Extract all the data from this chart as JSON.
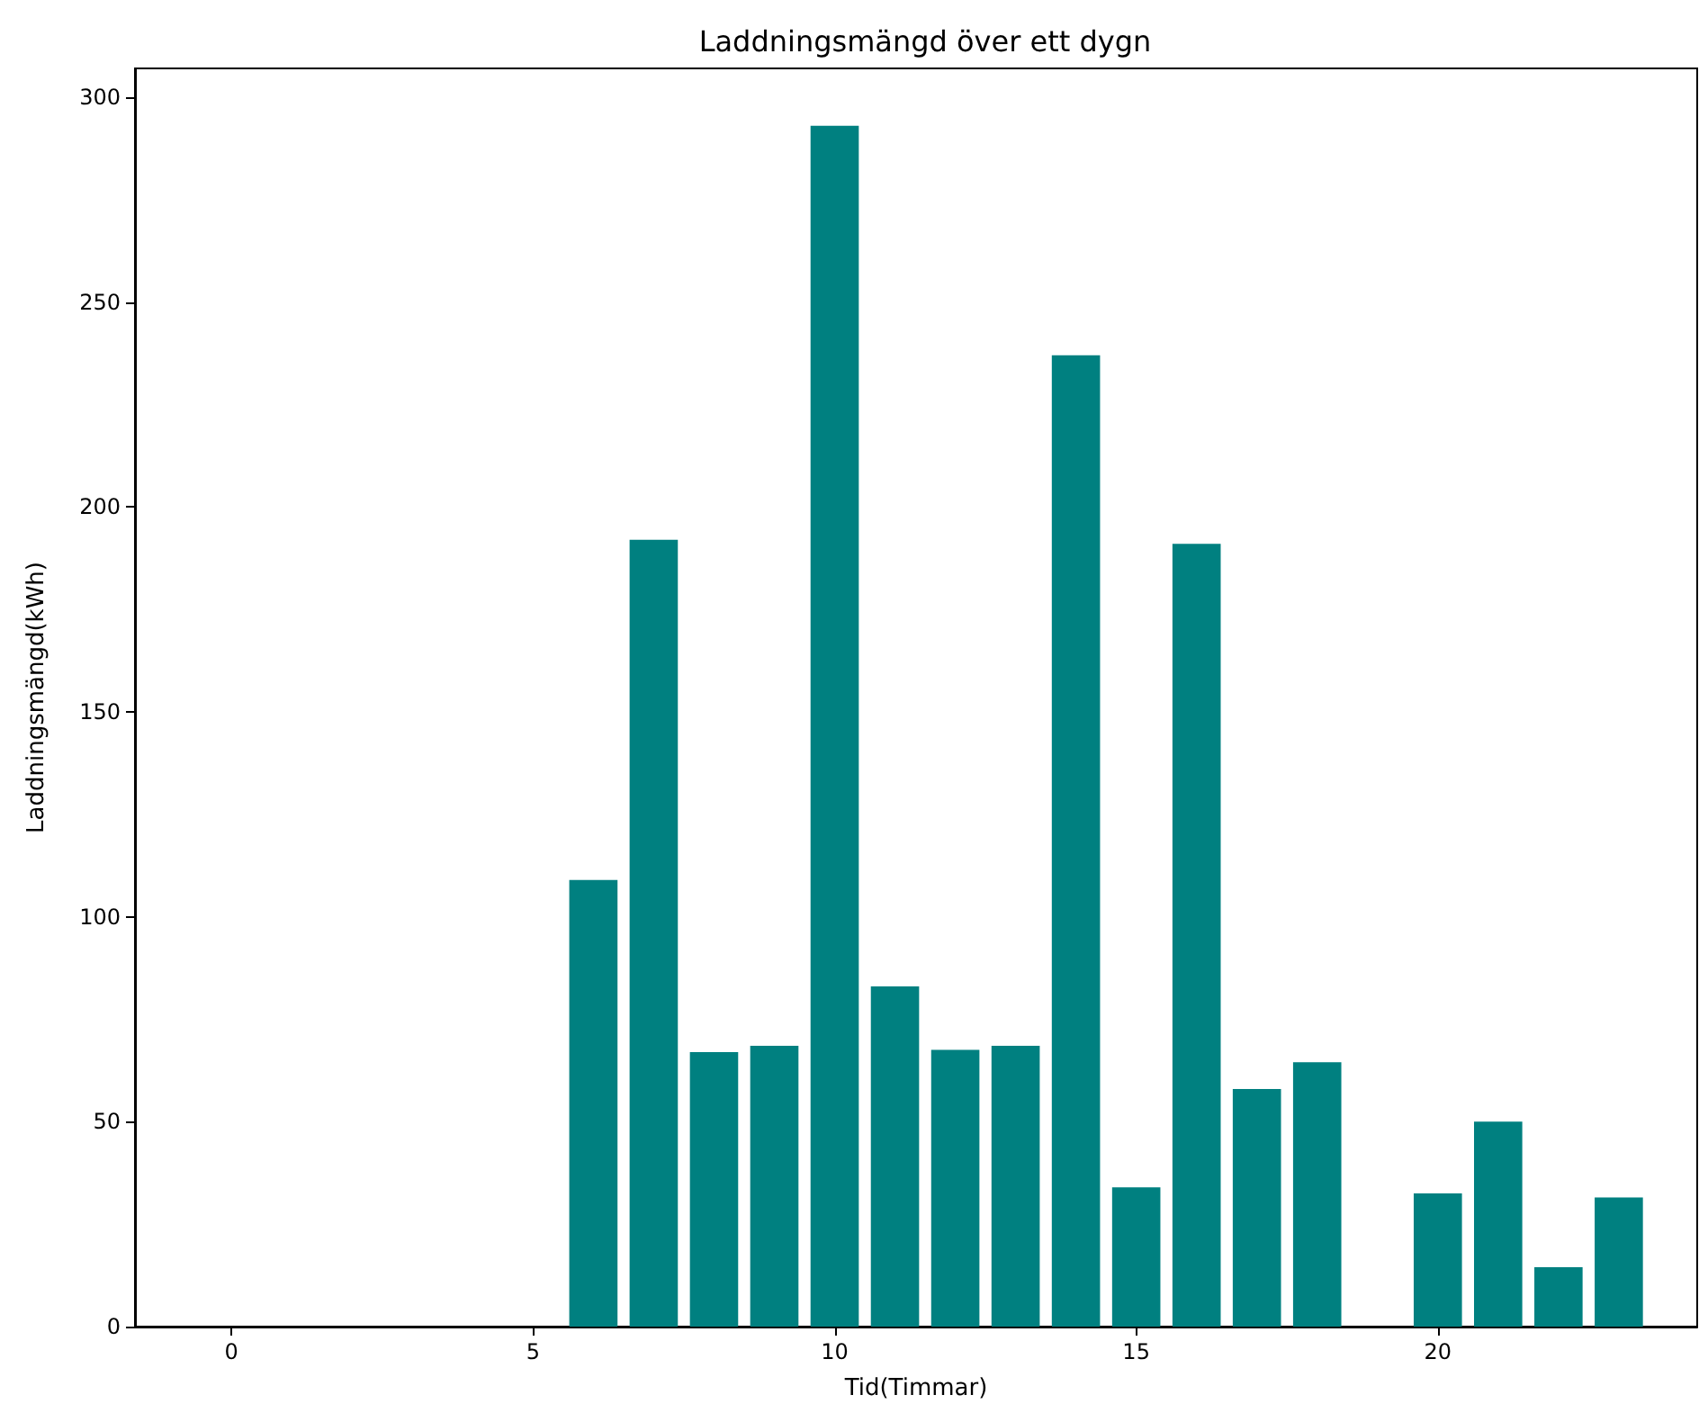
{
  "chart_data": {
    "type": "bar",
    "title": "Laddningsmängd över ett dygn",
    "xlabel": "Tid(Timmar)",
    "ylabel": "Laddningsmängd(kWh)",
    "x": [
      0,
      1,
      2,
      3,
      4,
      5,
      6,
      7,
      8,
      9,
      10,
      11,
      12,
      13,
      14,
      15,
      16,
      17,
      18,
      19,
      20,
      21,
      22,
      23
    ],
    "values": [
      0,
      0,
      0,
      0,
      0,
      0,
      109,
      192,
      67,
      68.5,
      293,
      83,
      67.5,
      68.5,
      237,
      34,
      191,
      58,
      64.5,
      0,
      32.5,
      50,
      14.5,
      31.5
    ],
    "color": "#008080",
    "xlim": [
      -1.6,
      24.3
    ],
    "xticks": [
      0,
      5,
      10,
      15,
      20
    ],
    "ylim": [
      0,
      307
    ],
    "yticks": [
      0,
      50,
      100,
      150,
      200,
      250,
      300
    ],
    "grid": false
  }
}
